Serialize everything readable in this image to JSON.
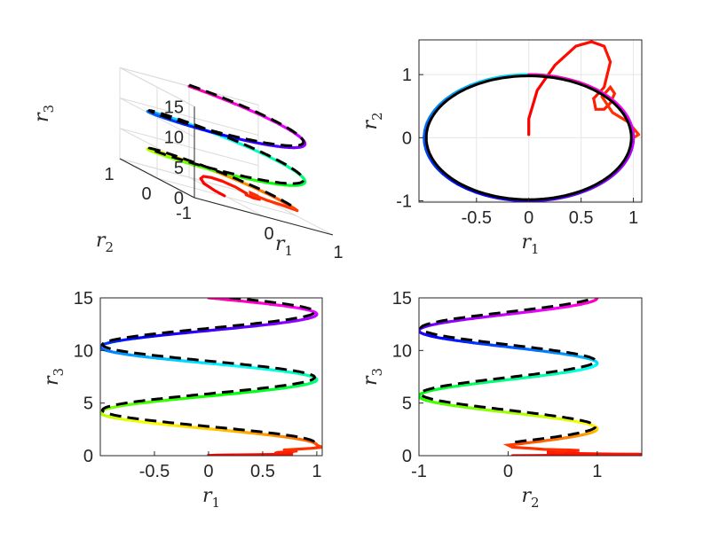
{
  "chart_data": [
    {
      "type": "line",
      "view": "3d",
      "xlabel": "r",
      "xlabel_sub": "1",
      "ylabel": "r",
      "ylabel_sub": "2",
      "zlabel": "r",
      "zlabel_sub": "3",
      "xticks": [
        -1,
        0,
        1
      ],
      "xtick_labels": [
        "",
        "0",
        "1"
      ],
      "yticks": [
        -1,
        0,
        1
      ],
      "ytick_labels": [
        "-1",
        "0",
        "1"
      ],
      "zticks": [
        0,
        5,
        10,
        15
      ],
      "ztick_labels": [
        "0",
        "5",
        "10",
        "15"
      ],
      "xlim": [
        -1,
        1
      ],
      "ylim": [
        -1,
        1
      ],
      "zlim": [
        0,
        15
      ],
      "grid": true
    },
    {
      "type": "line",
      "view": "r1-r2",
      "xlabel": "r",
      "xlabel_sub": "1",
      "ylabel": "r",
      "ylabel_sub": "2",
      "xticks": [
        -0.5,
        0,
        0.5,
        1
      ],
      "xtick_labels": [
        "-0.5",
        "0",
        "0.5",
        "1"
      ],
      "yticks": [
        -1,
        0,
        1
      ],
      "ytick_labels": [
        "-1",
        "0",
        "1"
      ],
      "xlim": [
        -1.05,
        1.08
      ],
      "ylim": [
        -1.02,
        1.55
      ],
      "grid": true
    },
    {
      "type": "line",
      "view": "r1-r3",
      "xlabel": "r",
      "xlabel_sub": "1",
      "ylabel": "r",
      "ylabel_sub": "3",
      "xticks": [
        -0.5,
        0,
        0.5,
        1
      ],
      "xtick_labels": [
        "-0.5",
        "0",
        "0.5",
        "1"
      ],
      "yticks": [
        0,
        5,
        10,
        15
      ],
      "ytick_labels": [
        "0",
        "5",
        "10",
        "15"
      ],
      "xlim": [
        -1.0,
        1.05
      ],
      "ylim": [
        0,
        15
      ],
      "grid": false
    },
    {
      "type": "line",
      "view": "r2-r3",
      "xlabel": "r",
      "xlabel_sub": "2",
      "ylabel": "r",
      "ylabel_sub": "3",
      "xticks": [
        -1,
        0,
        1
      ],
      "xtick_labels": [
        "-1",
        "0",
        "1"
      ],
      "yticks": [
        0,
        5,
        10,
        15
      ],
      "ytick_labels": [
        "0",
        "5",
        "10",
        "15"
      ],
      "xlim": [
        -1.0,
        1.5
      ],
      "ylim": [
        0,
        15
      ],
      "grid": false
    }
  ],
  "trajectory": {
    "helix": {
      "z_start": 1.0,
      "z_end": 15.0,
      "turns": 2.25,
      "radius": 1.0
    },
    "transient": [
      [
        0.0,
        0.05,
        0.0
      ],
      [
        0.0,
        0.3,
        0.02
      ],
      [
        0.08,
        0.75,
        0.05
      ],
      [
        0.25,
        1.15,
        0.08
      ],
      [
        0.45,
        1.45,
        0.1
      ],
      [
        0.6,
        1.52,
        0.12
      ],
      [
        0.72,
        1.45,
        0.14
      ],
      [
        0.78,
        1.2,
        0.15
      ],
      [
        0.72,
        0.8,
        0.2
      ],
      [
        0.62,
        0.62,
        0.25
      ],
      [
        0.64,
        0.45,
        0.3
      ],
      [
        0.72,
        0.45,
        0.35
      ],
      [
        0.78,
        0.55,
        0.4
      ],
      [
        0.82,
        0.7,
        0.45
      ],
      [
        0.78,
        0.8,
        0.5
      ],
      [
        0.7,
        0.65,
        0.55
      ],
      [
        0.8,
        0.4,
        0.6
      ],
      [
        0.95,
        0.25,
        0.7
      ],
      [
        1.05,
        0.05,
        0.8
      ],
      [
        1.0,
        0.0,
        1.0
      ]
    ],
    "reference_style": "dashed-black",
    "color_map": "hsv"
  }
}
